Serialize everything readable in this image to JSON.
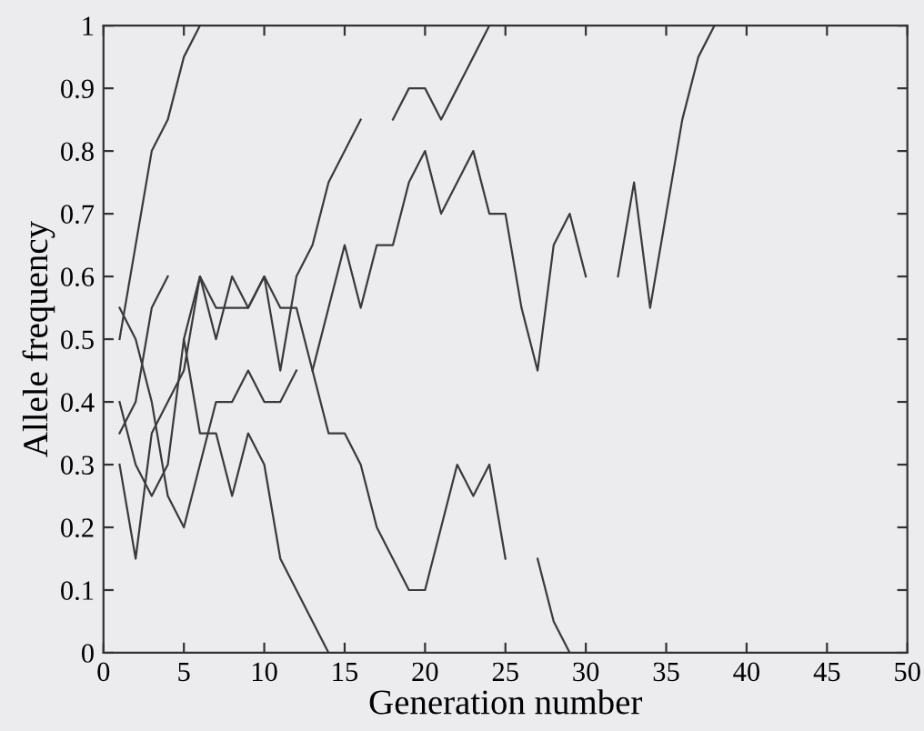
{
  "chart_data": {
    "type": "line",
    "xlabel": "Generation number",
    "ylabel": "Allele frequency",
    "xlim": [
      0,
      50
    ],
    "xticks": [
      0,
      5,
      10,
      15,
      20,
      25,
      30,
      35,
      40,
      45,
      50
    ],
    "ylim": [
      0,
      1
    ],
    "yticks": [
      0,
      0.1,
      0.2,
      0.3,
      0.4,
      0.5,
      0.6,
      0.7,
      0.8,
      0.9,
      1
    ],
    "grid": false,
    "legend": false,
    "marker": "none",
    "line_style": "solid",
    "series": [
      {
        "color": "#3a3a3a",
        "x": [
          1,
          2,
          3,
          4,
          5,
          6
        ],
        "values": [
          0.5,
          0.65,
          0.8,
          0.85,
          0.95,
          1
        ]
      },
      {
        "color": "#3a3a3a",
        "x": [
          1,
          2,
          3,
          4,
          5,
          6,
          7,
          8,
          9,
          10,
          11,
          12,
          13,
          14,
          15,
          16,
          17,
          18,
          19,
          20,
          21,
          22,
          23,
          24
        ],
        "values": [
          0.3,
          0.15,
          0.35,
          0.4,
          0.45,
          0.6,
          0.5,
          0.6,
          0.55,
          0.6,
          0.45,
          0.6,
          0.65,
          0.75,
          0.8,
          0.85,
          null,
          0.85,
          0.9,
          0.9,
          0.85,
          0.9,
          0.95,
          1
        ]
      },
      {
        "color": "#3a3a3a",
        "x": [
          1,
          2,
          3,
          4,
          5,
          6,
          7,
          8,
          9,
          10,
          11,
          12,
          13,
          14
        ],
        "values": [
          0.4,
          0.3,
          0.25,
          0.3,
          0.5,
          0.35,
          0.35,
          0.25,
          0.35,
          0.3,
          0.15,
          0.1,
          0.05,
          0
        ]
      },
      {
        "color": "#3a3a3a",
        "x": [
          1,
          2,
          3,
          4,
          5,
          6,
          7,
          8,
          9,
          10,
          11,
          12
        ],
        "values": [
          0.55,
          0.5,
          0.4,
          0.25,
          0.2,
          0.3,
          0.4,
          0.4,
          0.45,
          0.4,
          0.4,
          0.45
        ]
      },
      {
        "color": "#3a3a3a",
        "x": [
          1,
          2,
          3,
          4
        ],
        "values": [
          0.35,
          0.4,
          0.55,
          0.6
        ]
      },
      {
        "color": "#3a3a3a",
        "x": [
          5,
          6,
          7,
          8,
          9,
          10,
          11,
          12,
          13,
          14,
          15,
          16,
          17,
          18,
          19,
          20,
          21,
          22,
          23,
          24,
          25,
          26,
          27,
          28,
          29
        ],
        "values": [
          0.5,
          0.6,
          0.55,
          0.55,
          0.55,
          0.6,
          0.55,
          0.55,
          0.45,
          0.35,
          0.35,
          0.3,
          0.2,
          0.15,
          0.1,
          0.1,
          0.2,
          0.3,
          0.25,
          0.3,
          0.15,
          null,
          0.15,
          0.05,
          0
        ]
      },
      {
        "color": "#3a3a3a",
        "x": [
          13,
          14,
          15,
          16,
          17,
          18,
          19,
          20,
          21,
          22,
          23,
          24,
          25,
          26,
          27,
          28,
          29,
          30,
          31,
          32,
          33,
          34,
          35,
          36,
          37,
          38
        ],
        "values": [
          0.45,
          0.55,
          0.65,
          0.55,
          0.65,
          0.65,
          0.75,
          0.8,
          0.7,
          0.75,
          0.8,
          0.7,
          0.7,
          0.55,
          0.45,
          0.65,
          0.7,
          0.6,
          null,
          0.6,
          0.75,
          0.55,
          0.7,
          0.85,
          0.95,
          1
        ]
      }
    ]
  }
}
